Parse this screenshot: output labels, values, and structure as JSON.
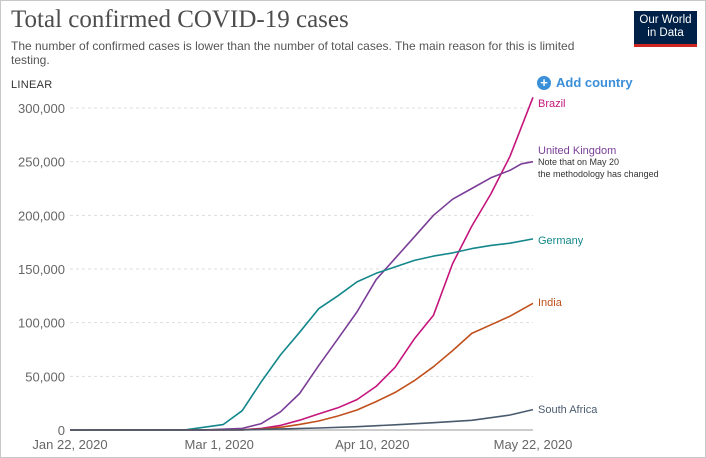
{
  "header": {
    "title": "Total confirmed COVID-19 cases",
    "subtitle": "The number of confirmed cases is lower than the number of total cases. The main reason for this is limited testing.",
    "logo_line1": "Our World",
    "logo_line2": "in Data"
  },
  "controls": {
    "scale": "LINEAR",
    "add_country": "Add country"
  },
  "colors": {
    "Brazil": "#c4157c",
    "United Kingdom": "#7a3e97",
    "Germany": "#13878b",
    "India": "#c0501b",
    "South Africa": "#4a5a6e"
  },
  "chart_data": {
    "type": "line",
    "title": "Total confirmed COVID-19 cases",
    "xlabel": "",
    "ylabel": "",
    "x_ticks": [
      "Jan 22, 2020",
      "Mar 1, 2020",
      "Apr 10, 2020",
      "May 22, 2020"
    ],
    "y_ticks": [
      "0",
      "50,000",
      "100,000",
      "150,000",
      "200,000",
      "250,000",
      "300,000"
    ],
    "ylim": [
      0,
      300000
    ],
    "x_unit": "days since Jan 22, 2020",
    "note": "Note that on May 20 the methodology has changed",
    "series": [
      {
        "name": "Brazil",
        "x": [
          0,
          35,
          45,
          50,
          55,
          60,
          65,
          70,
          75,
          80,
          85,
          90,
          95,
          100,
          105,
          110,
          115,
          121
        ],
        "y": [
          0,
          0,
          200,
          1500,
          4300,
          9100,
          15000,
          20700,
          28300,
          40600,
          58500,
          85000,
          107000,
          155000,
          190000,
          220000,
          255000,
          310000
        ]
      },
      {
        "name": "United Kingdom",
        "x": [
          0,
          35,
          45,
          50,
          55,
          60,
          65,
          70,
          75,
          80,
          85,
          90,
          95,
          100,
          105,
          110,
          115,
          118,
          121
        ],
        "y": [
          0,
          100,
          1500,
          6000,
          17000,
          34000,
          60000,
          85000,
          110000,
          140000,
          160000,
          180000,
          200000,
          215000,
          225000,
          235000,
          242000,
          248000,
          250000
        ]
      },
      {
        "name": "Germany",
        "x": [
          0,
          30,
          40,
          45,
          50,
          55,
          60,
          65,
          70,
          75,
          80,
          85,
          90,
          95,
          100,
          105,
          110,
          115,
          121
        ],
        "y": [
          0,
          100,
          5000,
          18000,
          45000,
          70000,
          91000,
          113000,
          125000,
          138000,
          146000,
          152000,
          158000,
          162000,
          165000,
          169000,
          172000,
          174000,
          178000
        ]
      },
      {
        "name": "India",
        "x": [
          0,
          45,
          50,
          55,
          60,
          65,
          70,
          75,
          80,
          85,
          90,
          95,
          100,
          105,
          110,
          115,
          121
        ],
        "y": [
          0,
          200,
          800,
          2500,
          5200,
          8400,
          13000,
          18600,
          26500,
          35000,
          46000,
          59000,
          74000,
          90000,
          98000,
          106000,
          118000
        ]
      },
      {
        "name": "South Africa",
        "x": [
          0,
          45,
          55,
          65,
          75,
          85,
          95,
          105,
          115,
          121
        ],
        "y": [
          0,
          100,
          1000,
          1900,
          3100,
          4800,
          6800,
          9000,
          14000,
          19000
        ]
      }
    ]
  }
}
